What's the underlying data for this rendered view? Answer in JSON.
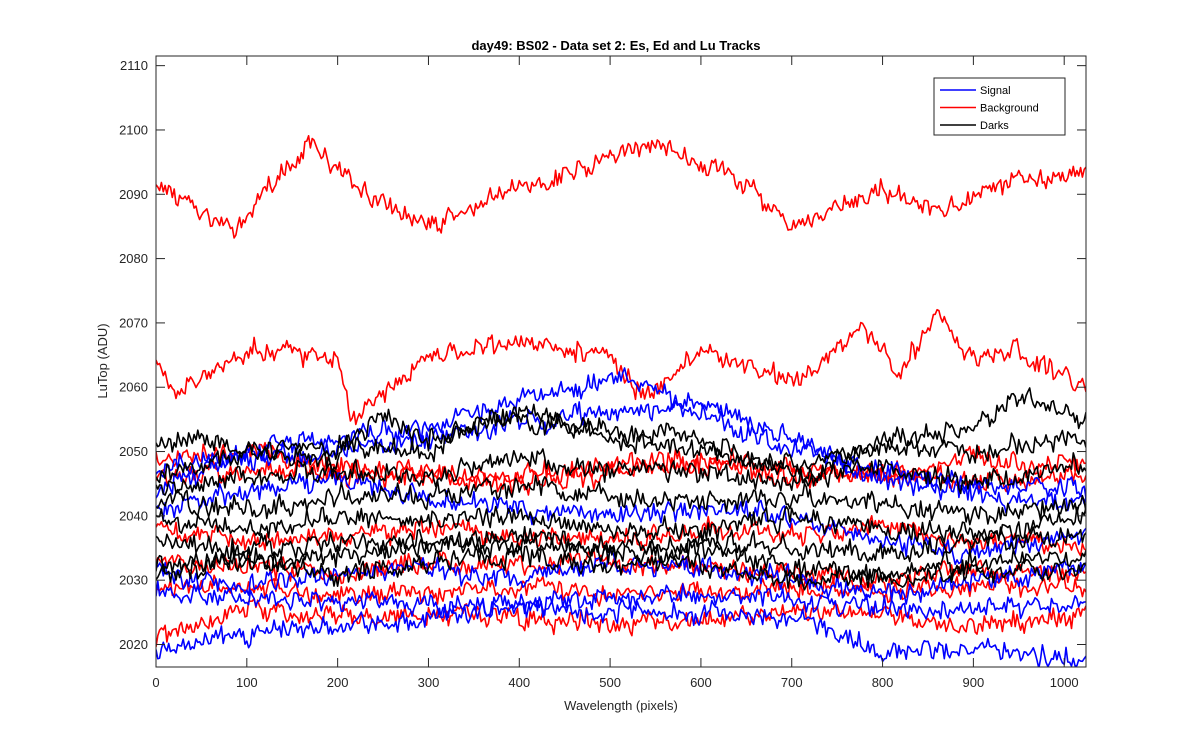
{
  "chart_data": {
    "type": "line",
    "title": "day49: BS02 - Data set 2: Es, Ed and Lu Tracks",
    "xlabel": "Wavelength (pixels)",
    "ylabel": "LuTop (ADU)",
    "xlim": [
      0,
      1024
    ],
    "ylim": [
      2016.5,
      2111.5
    ],
    "xticks": [
      0,
      100,
      200,
      300,
      400,
      500,
      600,
      700,
      800,
      900,
      1000
    ],
    "yticks": [
      2020,
      2030,
      2040,
      2050,
      2060,
      2070,
      2080,
      2090,
      2100,
      2110
    ],
    "grid": false,
    "legend_position": "top-right",
    "legend": [
      {
        "name": "Signal",
        "color": "#0000ff"
      },
      {
        "name": "Background",
        "color": "#ff0000"
      },
      {
        "name": "Darks",
        "color": "#000000"
      }
    ],
    "series": [
      {
        "group": "Background",
        "color": "#ff0000",
        "x": [
          0,
          80,
          170,
          220,
          300,
          400,
          550,
          650,
          700,
          800,
          860,
          950,
          1024
        ],
        "y": [
          2092,
          2084,
          2098,
          2091,
          2085,
          2091,
          2098,
          2092,
          2084,
          2091,
          2087,
          2092,
          2094
        ]
      },
      {
        "group": "Background",
        "color": "#ff0000",
        "x": [
          0,
          20,
          100,
          200,
          215,
          300,
          410,
          500,
          540,
          600,
          700,
          780,
          820,
          860,
          900,
          950,
          1024
        ],
        "y": [
          2064,
          2059,
          2066,
          2065,
          2055,
          2065,
          2067,
          2065,
          2058,
          2066,
          2061,
          2069,
          2062,
          2072,
          2064,
          2066,
          2060
        ]
      },
      {
        "group": "Signal",
        "color": "#0000ff",
        "x": [
          0,
          100,
          200,
          300,
          400,
          520,
          600,
          700,
          800,
          900,
          1024
        ],
        "y": [
          2044,
          2050,
          2052,
          2054,
          2058,
          2062,
          2056,
          2050,
          2047,
          2045,
          2044
        ]
      },
      {
        "group": "Signal",
        "color": "#0000ff",
        "x": [
          0,
          100,
          200,
          300,
          400,
          500,
          600,
          700,
          800,
          900,
          1024
        ],
        "y": [
          2047,
          2049,
          2050,
          2052,
          2055,
          2056,
          2058,
          2052,
          2046,
          2043,
          2042
        ]
      },
      {
        "group": "Signal",
        "color": "#0000ff",
        "x": [
          0,
          100,
          200,
          300,
          400,
          500,
          600,
          700,
          800,
          900,
          1024
        ],
        "y": [
          2041,
          2044,
          2046,
          2043,
          2041,
          2040,
          2041,
          2040,
          2036,
          2034,
          2038
        ]
      },
      {
        "group": "Signal",
        "color": "#0000ff",
        "x": [
          0,
          100,
          200,
          300,
          400,
          500,
          600,
          700,
          800,
          900,
          1024
        ],
        "y": [
          2031,
          2029,
          2031,
          2032,
          2030,
          2033,
          2032,
          2030,
          2028,
          2030,
          2032
        ]
      },
      {
        "group": "Signal",
        "color": "#0000ff",
        "x": [
          0,
          100,
          200,
          300,
          400,
          500,
          600,
          700,
          800,
          900,
          1024
        ],
        "y": [
          2028,
          2027,
          2027,
          2026,
          2026,
          2027,
          2028,
          2027,
          2026,
          2025,
          2027
        ]
      },
      {
        "group": "Signal",
        "color": "#0000ff",
        "x": [
          0,
          100,
          200,
          300,
          400,
          500,
          600,
          700,
          730,
          800,
          900,
          1024
        ],
        "y": [
          2019,
          2022,
          2023,
          2024,
          2026,
          2025,
          2025,
          2024,
          2023,
          2019,
          2019,
          2018
        ]
      },
      {
        "group": "Background",
        "color": "#ff0000",
        "x": [
          0,
          100,
          200,
          300,
          400,
          500,
          600,
          700,
          800,
          900,
          1024
        ],
        "y": [
          2049,
          2050,
          2048,
          2047,
          2046,
          2048,
          2049,
          2047,
          2046,
          2049,
          2048
        ]
      },
      {
        "group": "Background",
        "color": "#ff0000",
        "x": [
          0,
          100,
          200,
          300,
          400,
          500,
          600,
          700,
          800,
          900,
          1024
        ],
        "y": [
          2046,
          2047,
          2047,
          2046,
          2045,
          2047,
          2048,
          2046,
          2047,
          2045,
          2046
        ]
      },
      {
        "group": "Background",
        "color": "#ff0000",
        "x": [
          0,
          100,
          200,
          300,
          400,
          500,
          600,
          700,
          800,
          900,
          1024
        ],
        "y": [
          2038,
          2036,
          2037,
          2038,
          2037,
          2036,
          2038,
          2037,
          2038,
          2036,
          2035
        ]
      },
      {
        "group": "Background",
        "color": "#ff0000",
        "x": [
          0,
          100,
          200,
          300,
          400,
          500,
          600,
          700,
          800,
          900,
          1024
        ],
        "y": [
          2033,
          2032,
          2031,
          2033,
          2032,
          2033,
          2032,
          2031,
          2030,
          2032,
          2031
        ]
      },
      {
        "group": "Background",
        "color": "#ff0000",
        "x": [
          0,
          100,
          200,
          300,
          400,
          500,
          600,
          700,
          800,
          900,
          1024
        ],
        "y": [
          2029,
          2029,
          2028,
          2028,
          2029,
          2028,
          2028,
          2029,
          2028,
          2029,
          2029
        ]
      },
      {
        "group": "Background",
        "color": "#ff0000",
        "x": [
          0,
          100,
          200,
          300,
          400,
          500,
          600,
          700,
          800,
          900,
          1024
        ],
        "y": [
          2021,
          2026,
          2024,
          2025,
          2024,
          2023,
          2024,
          2025,
          2025,
          2022,
          2025
        ]
      },
      {
        "group": "Darks",
        "color": "#000000",
        "x": [
          0,
          60,
          100,
          200,
          250,
          300,
          400,
          500,
          600,
          700,
          800,
          900,
          950,
          1024
        ],
        "y": [
          2052,
          2052,
          2050,
          2049,
          2056,
          2052,
          2056,
          2053,
          2052,
          2046,
          2052,
          2054,
          2059,
          2055
        ]
      },
      {
        "group": "Darks",
        "color": "#000000",
        "x": [
          0,
          100,
          200,
          300,
          380,
          500,
          600,
          700,
          800,
          900,
          1024
        ],
        "y": [
          2046,
          2050,
          2051,
          2050,
          2056,
          2052,
          2050,
          2048,
          2051,
          2050,
          2052
        ]
      },
      {
        "group": "Darks",
        "color": "#000000",
        "x": [
          0,
          100,
          200,
          300,
          400,
          500,
          600,
          700,
          800,
          900,
          1024
        ],
        "y": [
          2044,
          2046,
          2047,
          2046,
          2049,
          2047,
          2047,
          2045,
          2048,
          2045,
          2048
        ]
      },
      {
        "group": "Darks",
        "color": "#000000",
        "x": [
          0,
          100,
          200,
          300,
          400,
          500,
          600,
          700,
          800,
          900,
          1024
        ],
        "y": [
          2042,
          2041,
          2043,
          2043,
          2045,
          2043,
          2042,
          2043,
          2042,
          2040,
          2042
        ]
      },
      {
        "group": "Darks",
        "color": "#000000",
        "x": [
          0,
          100,
          200,
          300,
          400,
          500,
          600,
          700,
          800,
          900,
          1024
        ],
        "y": [
          2040,
          2038,
          2040,
          2039,
          2040,
          2038,
          2038,
          2040,
          2038,
          2037,
          2040
        ]
      },
      {
        "group": "Darks",
        "color": "#000000",
        "x": [
          0,
          100,
          200,
          300,
          400,
          500,
          600,
          700,
          800,
          900,
          1024
        ],
        "y": [
          2036,
          2035,
          2036,
          2036,
          2037,
          2035,
          2036,
          2035,
          2034,
          2036,
          2037
        ]
      },
      {
        "group": "Darks",
        "color": "#000000",
        "x": [
          0,
          100,
          200,
          300,
          400,
          500,
          600,
          700,
          800,
          900,
          1024
        ],
        "y": [
          2032,
          2033,
          2034,
          2035,
          2036,
          2034,
          2035,
          2032,
          2031,
          2033,
          2034
        ]
      },
      {
        "group": "Darks",
        "color": "#000000",
        "x": [
          0,
          100,
          200,
          300,
          400,
          500,
          600,
          700,
          800,
          900,
          1024
        ],
        "y": [
          2030,
          2034,
          2031,
          2033,
          2034,
          2032,
          2033,
          2030,
          2030,
          2031,
          2032
        ]
      }
    ]
  }
}
